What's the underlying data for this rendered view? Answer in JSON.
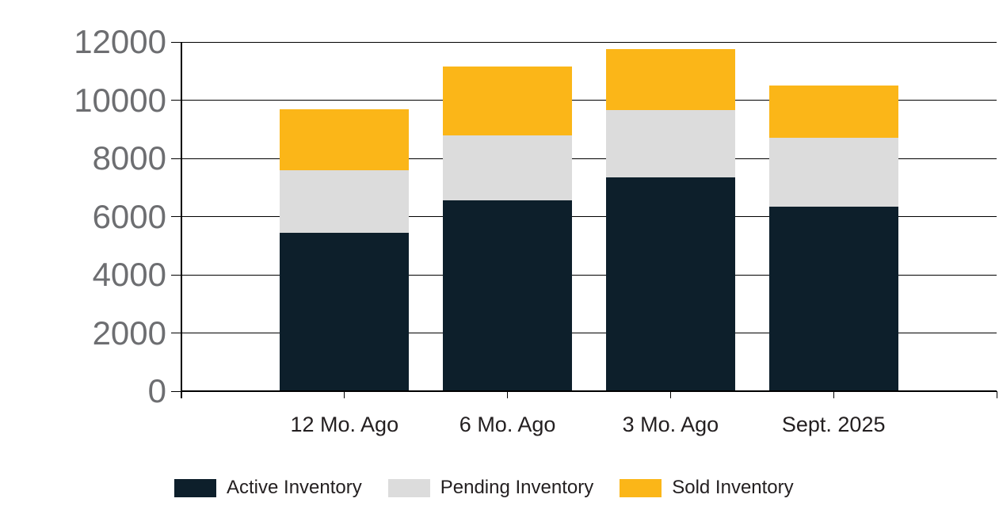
{
  "chart_data": {
    "type": "bar",
    "stacked": true,
    "title": "",
    "xlabel": "",
    "ylabel": "",
    "categories": [
      "12 Mo. Ago",
      "6 Mo. Ago",
      "3 Mo. Ago",
      "Sept. 2025"
    ],
    "series": [
      {
        "name": "Active Inventory",
        "color": "#0d1f2b",
        "values": [
          5450,
          6550,
          7350,
          6350
        ]
      },
      {
        "name": "Pending Inventory",
        "color": "#dcdcdc",
        "values": [
          2150,
          2250,
          2300,
          2350
        ]
      },
      {
        "name": "Sold Inventory",
        "color": "#fbb618",
        "values": [
          2100,
          2350,
          2100,
          1800
        ]
      }
    ],
    "stack_totals": [
      9700,
      11150,
      11750,
      10500
    ],
    "y_axis": {
      "min": 0,
      "max": 12000,
      "step": 2000,
      "tick_labels": [
        "0",
        "2000",
        "4000",
        "6000",
        "8000",
        "10000",
        "12000"
      ]
    },
    "grid": true,
    "legend_position": "bottom",
    "legend_labels": [
      "Active Inventory",
      "Pending Inventory",
      "Sold Inventory"
    ]
  },
  "colors": {
    "background": "#ffffff",
    "axis": "#000000",
    "gridline": "#000000",
    "y_tick_label": "#6d6e71",
    "x_tick_label": "#231f20",
    "legend_text": "#231f20",
    "active_inventory": "#0d1f2b",
    "pending_inventory": "#dcdcdc",
    "sold_inventory": "#fbb618"
  }
}
